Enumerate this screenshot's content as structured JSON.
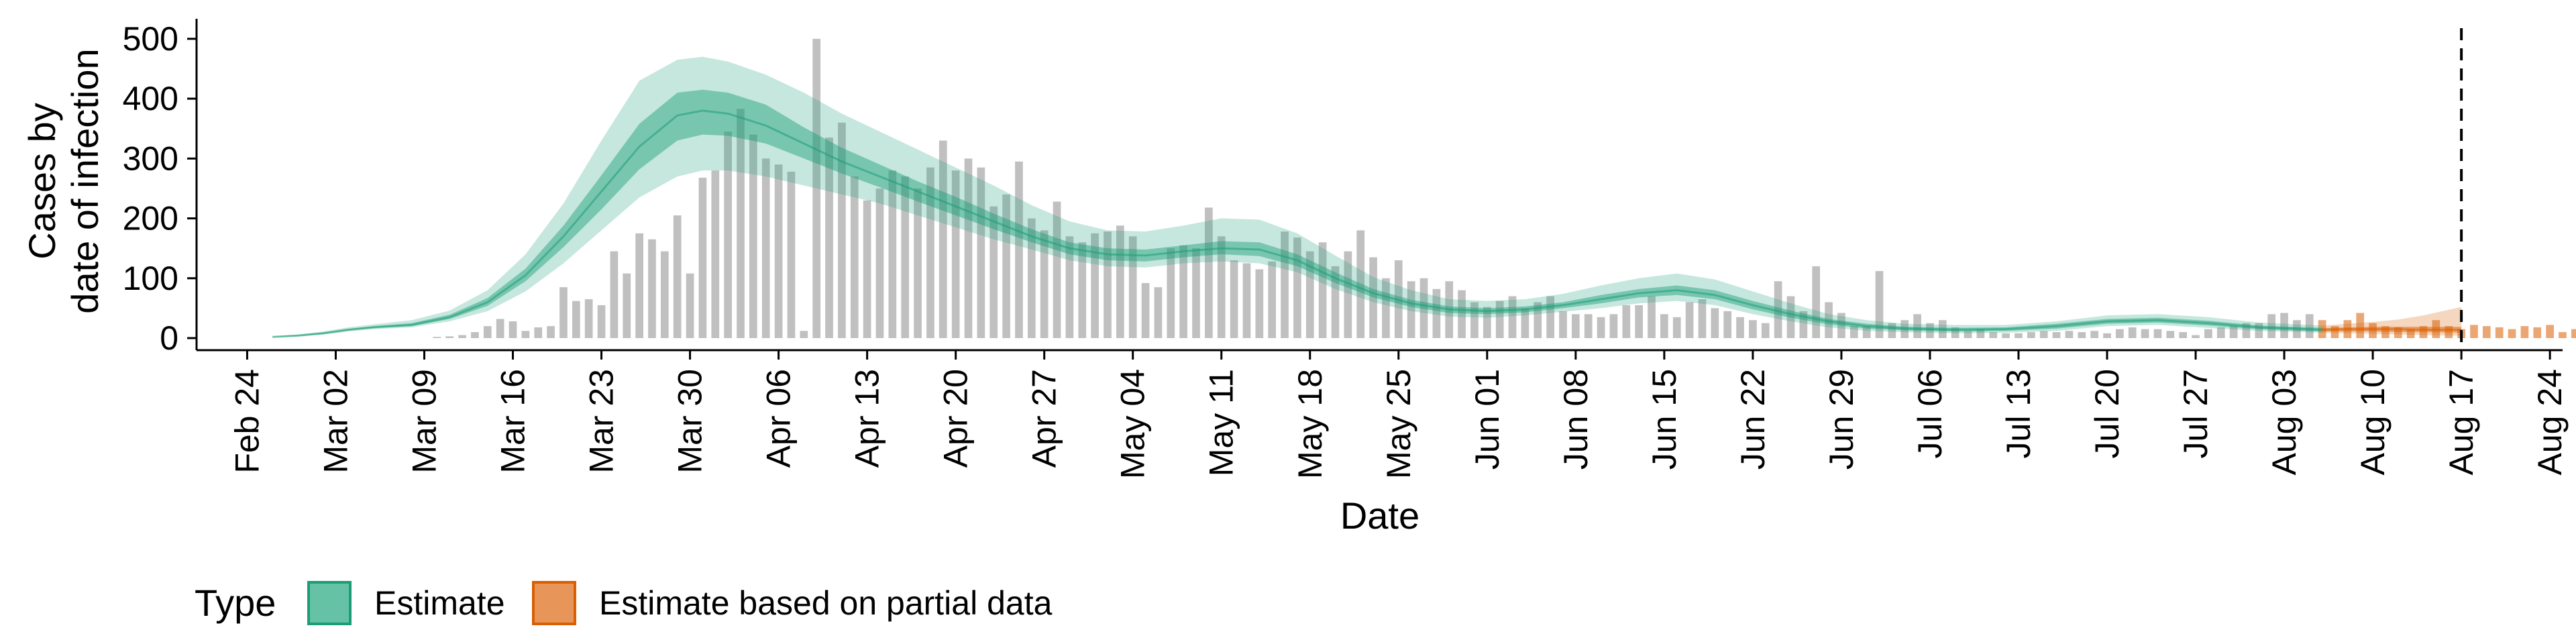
{
  "chart_data": {
    "type": "bar",
    "xlabel": "Date",
    "ylabel_lines": [
      "Cases by",
      "date of infection"
    ],
    "ylim": [
      0,
      520
    ],
    "y_ticks": [
      0,
      100,
      200,
      300,
      400,
      500
    ],
    "x_ticks": [
      {
        "date": "2020-02-24",
        "label": "Feb 24"
      },
      {
        "date": "2020-03-02",
        "label": "Mar 02"
      },
      {
        "date": "2020-03-09",
        "label": "Mar 09"
      },
      {
        "date": "2020-03-16",
        "label": "Mar 16"
      },
      {
        "date": "2020-03-23",
        "label": "Mar 23"
      },
      {
        "date": "2020-03-30",
        "label": "Mar 30"
      },
      {
        "date": "2020-04-06",
        "label": "Apr 06"
      },
      {
        "date": "2020-04-13",
        "label": "Apr 13"
      },
      {
        "date": "2020-04-20",
        "label": "Apr 20"
      },
      {
        "date": "2020-04-27",
        "label": "Apr 27"
      },
      {
        "date": "2020-05-04",
        "label": "May 04"
      },
      {
        "date": "2020-05-11",
        "label": "May 11"
      },
      {
        "date": "2020-05-18",
        "label": "May 18"
      },
      {
        "date": "2020-05-25",
        "label": "May 25"
      },
      {
        "date": "2020-06-01",
        "label": "Jun 01"
      },
      {
        "date": "2020-06-08",
        "label": "Jun 08"
      },
      {
        "date": "2020-06-15",
        "label": "Jun 15"
      },
      {
        "date": "2020-06-22",
        "label": "Jun 22"
      },
      {
        "date": "2020-06-29",
        "label": "Jun 29"
      },
      {
        "date": "2020-07-06",
        "label": "Jul 06"
      },
      {
        "date": "2020-07-13",
        "label": "Jul 13"
      },
      {
        "date": "2020-07-20",
        "label": "Jul 20"
      },
      {
        "date": "2020-07-27",
        "label": "Jul 27"
      },
      {
        "date": "2020-08-03",
        "label": "Aug 03"
      },
      {
        "date": "2020-08-10",
        "label": "Aug 10"
      },
      {
        "date": "2020-08-17",
        "label": "Aug 17"
      },
      {
        "date": "2020-08-24",
        "label": "Aug 24"
      }
    ],
    "x_range": [
      "2020-02-20",
      "2020-08-25"
    ],
    "vline_date": "2020-08-17",
    "partial_start_date": "2020-08-06",
    "bars": {
      "start_date": "2020-03-10",
      "values": [
        2,
        3,
        5,
        10,
        20,
        32,
        28,
        12,
        18,
        20,
        85,
        62,
        65,
        55,
        145,
        108,
        175,
        165,
        145,
        205,
        108,
        268,
        280,
        345,
        383,
        340,
        300,
        290,
        278,
        12,
        500,
        335,
        360,
        270,
        230,
        250,
        280,
        270,
        250,
        285,
        330,
        280,
        300,
        285,
        220,
        240,
        295,
        200,
        180,
        228,
        170,
        160,
        175,
        178,
        188,
        170,
        92,
        85,
        150,
        155,
        150,
        218,
        170,
        130,
        125,
        115,
        128,
        178,
        168,
        145,
        160,
        120,
        145,
        180,
        135,
        100,
        130,
        95,
        100,
        82,
        95,
        80,
        60,
        52,
        62,
        70,
        50,
        60,
        70,
        45,
        40,
        40,
        35,
        40,
        55,
        55,
        70,
        40,
        35,
        60,
        65,
        50,
        45,
        35,
        30,
        25,
        95,
        70,
        45,
        120,
        60,
        42,
        20,
        20,
        112,
        25,
        30,
        40,
        25,
        30,
        18,
        12,
        15,
        10,
        8,
        8,
        10,
        12,
        10,
        12,
        10,
        12,
        8,
        15,
        18,
        15,
        15,
        12,
        10,
        5,
        15,
        18,
        20,
        25,
        25,
        40,
        42,
        30,
        40,
        30,
        20,
        30,
        42,
        25,
        20,
        18,
        15,
        20,
        30,
        20,
        15,
        22,
        20,
        18,
        15,
        20,
        18,
        22,
        10,
        15,
        12,
        18
      ]
    },
    "series": [
      {
        "name": "Estimate",
        "color": "#1b9e77",
        "dates": [
          "2020-02-26",
          "2020-02-28",
          "2020-03-01",
          "2020-03-03",
          "2020-03-05",
          "2020-03-08",
          "2020-03-11",
          "2020-03-14",
          "2020-03-17",
          "2020-03-20",
          "2020-03-23",
          "2020-03-26",
          "2020-03-29",
          "2020-03-31",
          "2020-04-02",
          "2020-04-05",
          "2020-04-08",
          "2020-04-11",
          "2020-04-14",
          "2020-04-17",
          "2020-04-20",
          "2020-04-23",
          "2020-04-26",
          "2020-04-29",
          "2020-05-02",
          "2020-05-05",
          "2020-05-08",
          "2020-05-11",
          "2020-05-14",
          "2020-05-17",
          "2020-05-20",
          "2020-05-23",
          "2020-05-26",
          "2020-05-29",
          "2020-06-01",
          "2020-06-04",
          "2020-06-07",
          "2020-06-10",
          "2020-06-13",
          "2020-06-16",
          "2020-06-19",
          "2020-06-22",
          "2020-06-25",
          "2020-06-28",
          "2020-07-01",
          "2020-07-04",
          "2020-07-08",
          "2020-07-12",
          "2020-07-16",
          "2020-07-20",
          "2020-07-24",
          "2020-07-28",
          "2020-08-01",
          "2020-08-06"
        ],
        "median": [
          2,
          4,
          8,
          14,
          18,
          22,
          35,
          60,
          105,
          170,
          245,
          320,
          372,
          380,
          375,
          355,
          325,
          295,
          270,
          245,
          220,
          195,
          170,
          150,
          140,
          138,
          145,
          150,
          148,
          130,
          100,
          75,
          58,
          48,
          45,
          48,
          55,
          65,
          75,
          80,
          72,
          55,
          40,
          28,
          20,
          16,
          14,
          15,
          20,
          28,
          30,
          25,
          18,
          14
        ],
        "inner_lower": [
          2,
          4,
          7,
          13,
          17,
          20,
          32,
          54,
          95,
          152,
          215,
          282,
          330,
          340,
          338,
          325,
          300,
          275,
          252,
          228,
          205,
          182,
          160,
          140,
          130,
          128,
          135,
          140,
          137,
          120,
          92,
          68,
          52,
          42,
          40,
          43,
          50,
          58,
          68,
          72,
          65,
          48,
          34,
          23,
          16,
          13,
          11,
          12,
          16,
          24,
          26,
          21,
          15,
          11
        ],
        "inner_upper": [
          2,
          5,
          9,
          15,
          20,
          25,
          39,
          67,
          116,
          188,
          272,
          358,
          410,
          415,
          410,
          390,
          352,
          318,
          290,
          262,
          236,
          208,
          182,
          160,
          150,
          148,
          155,
          162,
          160,
          140,
          110,
          82,
          64,
          53,
          50,
          53,
          60,
          72,
          82,
          88,
          80,
          62,
          46,
          32,
          24,
          19,
          17,
          18,
          24,
          32,
          34,
          29,
          21,
          17
        ],
        "outer_lower": [
          1,
          3,
          6,
          11,
          15,
          18,
          28,
          45,
          78,
          125,
          180,
          235,
          270,
          280,
          280,
          270,
          255,
          240,
          225,
          205,
          185,
          165,
          148,
          130,
          120,
          118,
          125,
          128,
          125,
          110,
          82,
          60,
          45,
          36,
          34,
          38,
          44,
          50,
          58,
          62,
          55,
          40,
          28,
          18,
          12,
          10,
          8,
          9,
          12,
          20,
          22,
          17,
          12,
          9
        ],
        "outer_upper": [
          3,
          6,
          11,
          18,
          23,
          30,
          46,
          80,
          140,
          225,
          330,
          430,
          465,
          470,
          462,
          440,
          410,
          375,
          345,
          315,
          285,
          255,
          222,
          195,
          180,
          178,
          188,
          200,
          198,
          175,
          138,
          102,
          80,
          65,
          62,
          65,
          74,
          88,
          100,
          108,
          98,
          78,
          58,
          40,
          30,
          24,
          22,
          22,
          28,
          38,
          40,
          35,
          26,
          21
        ]
      },
      {
        "name": "Estimate based on partial data",
        "color": "#d95f02",
        "dates": [
          "2020-08-06",
          "2020-08-08",
          "2020-08-10",
          "2020-08-12",
          "2020-08-14",
          "2020-08-17"
        ],
        "median": [
          14,
          15,
          15,
          15,
          14,
          14
        ],
        "inner_lower": [
          11,
          11,
          11,
          10,
          10,
          9
        ],
        "inner_upper": [
          17,
          18,
          19,
          19,
          19,
          19
        ],
        "outer_lower": [
          9,
          8,
          7,
          6,
          5,
          4
        ],
        "outer_upper": [
          21,
          24,
          27,
          31,
          38,
          52
        ]
      }
    ],
    "legend": {
      "title": "Type",
      "items": [
        {
          "label": "Estimate",
          "fill": "#66c2a5",
          "stroke": "#1b9e77"
        },
        {
          "label": "Estimate based on partial data",
          "fill": "#e8955a",
          "stroke": "#d95f02"
        }
      ]
    },
    "bar_color": "#bdbdbd"
  }
}
